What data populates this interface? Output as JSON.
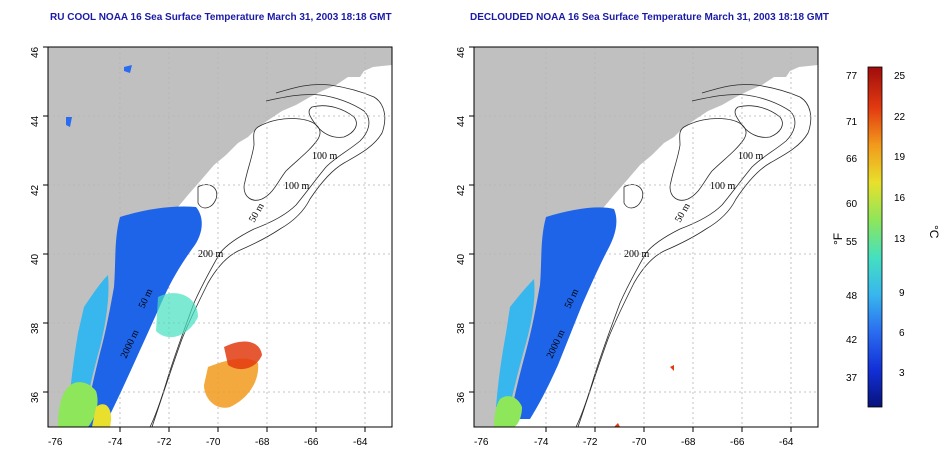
{
  "panels": [
    {
      "id": "left",
      "title": "RU COOL NOAA 16 Sea Surface Temperature March 31, 2003 18:18 GMT",
      "clouds_removed": false
    },
    {
      "id": "right",
      "title": "DECLOUDED NOAA 16 Sea Surface Temperature March 31, 2003 18:18 GMT",
      "clouds_removed": true
    }
  ],
  "axes": {
    "x_ticks": [
      "-76",
      "-74",
      "-72",
      "-70",
      "-68",
      "-66",
      "-64"
    ],
    "y_ticks": [
      "36",
      "38",
      "40",
      "42",
      "44",
      "46"
    ]
  },
  "contour_labels": {
    "left": [
      "100 m",
      "100 m",
      "50 m",
      "200 m",
      "50 m",
      "2000 m"
    ],
    "right": [
      "100 m",
      "100 m",
      "50 m",
      "200 m",
      "50 m",
      "2000 m"
    ]
  },
  "colorbar": {
    "unit_f": "°F",
    "unit_c": "°C",
    "f_ticks": [
      "77",
      "71",
      "66",
      "60",
      "55",
      "48",
      "42",
      "37"
    ],
    "c_ticks": [
      "25",
      "22",
      "19",
      "16",
      "13",
      "9",
      "6",
      "3"
    ],
    "colors": [
      "#08127a",
      "#1230d8",
      "#2a6cf0",
      "#38b6ee",
      "#44e0c0",
      "#8ee65a",
      "#e8e02c",
      "#f29a1c",
      "#e23a10",
      "#a00c0c"
    ]
  },
  "colors": {
    "land": "#c0c0c0",
    "grid": "#b4b4b4",
    "title": "#1a1aa6"
  }
}
